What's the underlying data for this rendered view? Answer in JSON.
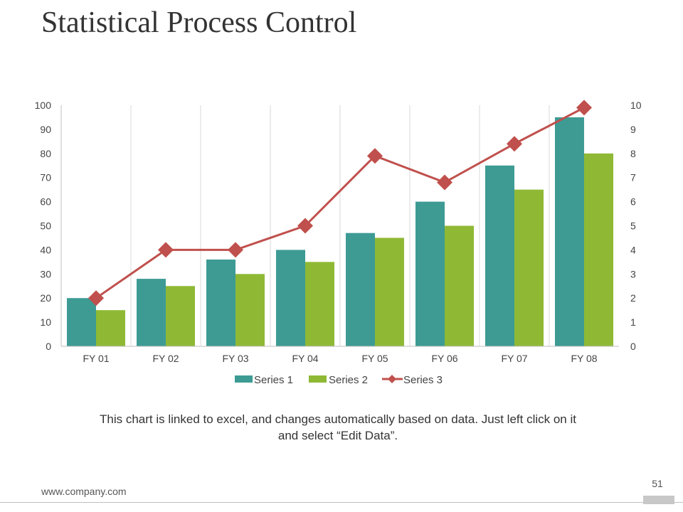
{
  "slide": {
    "title": "Statistical Process Control",
    "caption_line1": "This chart is linked to excel, and changes automatically based on data. Just left click on it",
    "caption_line2": "and select “Edit Data”.",
    "footer_url": "www.company.com",
    "page_number": "51"
  },
  "colors": {
    "series1": "#3d9b94",
    "series2": "#8fb935",
    "series3": "#c0504d",
    "grid": "#d9d9d9"
  },
  "chart_data": {
    "type": "bar",
    "categories": [
      "FY 01",
      "FY 02",
      "FY 03",
      "FY 04",
      "FY 05",
      "FY 06",
      "FY 07",
      "FY 08"
    ],
    "series": [
      {
        "name": "Series 1",
        "type": "bar",
        "axis": "left",
        "values": [
          20,
          28,
          36,
          40,
          47,
          60,
          75,
          95
        ]
      },
      {
        "name": "Series 2",
        "type": "bar",
        "axis": "left",
        "values": [
          15,
          25,
          30,
          35,
          45,
          50,
          65,
          80
        ]
      },
      {
        "name": "Series 3",
        "type": "line",
        "axis": "right",
        "values": [
          2,
          4,
          4,
          5,
          7.9,
          6.8,
          8.4,
          9.9
        ]
      }
    ],
    "y_left": {
      "ticks": [
        "0",
        "10",
        "20",
        "30",
        "40",
        "50",
        "60",
        "70",
        "80",
        "90",
        "100"
      ],
      "lim": [
        0,
        100
      ]
    },
    "y_right": {
      "ticks": [
        "0",
        "1",
        "2",
        "3",
        "4",
        "5",
        "6",
        "7",
        "8",
        "9",
        "10"
      ],
      "lim": [
        0,
        10
      ]
    },
    "grid": "vertical",
    "legend": "bottom"
  }
}
